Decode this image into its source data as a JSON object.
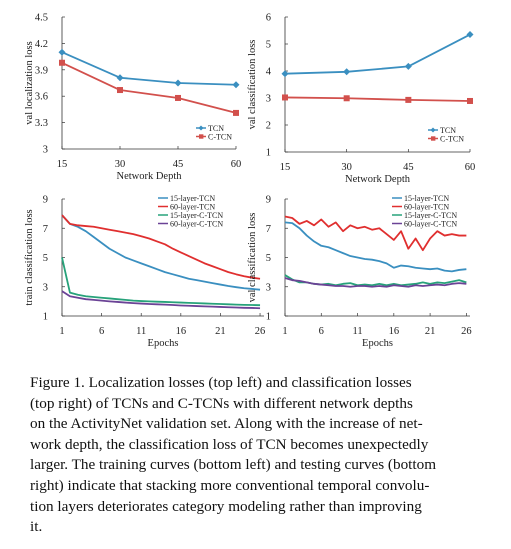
{
  "chart_data": [
    {
      "type": "line",
      "xlabel": "Network Depth",
      "ylabel": "val localization loss",
      "x": [
        15,
        30,
        45,
        60
      ],
      "xticks": [
        15,
        30,
        45,
        60
      ],
      "yticks": [
        "3",
        "3.3",
        "3.6",
        "3.9",
        "4.2",
        "4.5"
      ],
      "xlim": [
        15,
        60
      ],
      "ylim": [
        3,
        4.5
      ],
      "legend_position": "bottom-right",
      "series": [
        {
          "name": "TCN",
          "color": "#3a8fc0",
          "marker": "diamond",
          "values": [
            4.1,
            3.81,
            3.75,
            3.73
          ]
        },
        {
          "name": "C-TCN",
          "color": "#d2504c",
          "marker": "square",
          "values": [
            3.98,
            3.67,
            3.58,
            3.41
          ]
        }
      ]
    },
    {
      "type": "line",
      "xlabel": "Network Depth",
      "ylabel": "val classification loss",
      "x": [
        15,
        30,
        45,
        60
      ],
      "xticks": [
        15,
        30,
        45,
        60
      ],
      "yticks": [
        "1",
        "2",
        "3",
        "4",
        "5",
        "6"
      ],
      "xlim": [
        15,
        60
      ],
      "ylim": [
        1,
        6
      ],
      "legend_position": "bottom-right",
      "series": [
        {
          "name": "TCN",
          "color": "#3a8fc0",
          "marker": "diamond",
          "values": [
            3.9,
            3.97,
            4.17,
            5.35
          ]
        },
        {
          "name": "C-TCN",
          "color": "#d2504c",
          "marker": "square",
          "values": [
            3.02,
            2.99,
            2.93,
            2.89
          ]
        }
      ]
    },
    {
      "type": "line",
      "xlabel": "Epochs",
      "ylabel": "train classification loss",
      "x": [
        1,
        2,
        3,
        4,
        5,
        6,
        7,
        8,
        9,
        10,
        11,
        12,
        13,
        14,
        15,
        16,
        17,
        18,
        19,
        20,
        21,
        22,
        23,
        24,
        25,
        26
      ],
      "xticks": [
        1,
        6,
        11,
        16,
        21,
        26
      ],
      "yticks": [
        "1",
        "3",
        "5",
        "7",
        "9"
      ],
      "xlim": [
        1,
        26.5
      ],
      "ylim": [
        1,
        9
      ],
      "legend_position": "top-right",
      "series": [
        {
          "name": "15-layer-TCN",
          "color": "#3a8fc0",
          "values": [
            7.9,
            7.3,
            7.1,
            6.8,
            6.4,
            6.0,
            5.6,
            5.3,
            5.0,
            4.8,
            4.6,
            4.4,
            4.2,
            4.0,
            3.85,
            3.7,
            3.55,
            3.45,
            3.35,
            3.25,
            3.15,
            3.05,
            2.97,
            2.9,
            2.85,
            2.8
          ]
        },
        {
          "name": "60-layer-TCN",
          "color": "#e02f2f",
          "values": [
            7.9,
            7.3,
            7.2,
            7.15,
            7.1,
            7.0,
            6.9,
            6.8,
            6.7,
            6.6,
            6.45,
            6.3,
            6.1,
            5.9,
            5.6,
            5.35,
            5.1,
            4.85,
            4.6,
            4.4,
            4.2,
            4.0,
            3.85,
            3.72,
            3.62,
            3.55
          ]
        },
        {
          "name": "15-layer-C-TCN",
          "color": "#27a27a",
          "values": [
            5.0,
            2.6,
            2.45,
            2.35,
            2.3,
            2.25,
            2.2,
            2.15,
            2.1,
            2.05,
            2.02,
            2.0,
            1.98,
            1.96,
            1.94,
            1.92,
            1.9,
            1.88,
            1.86,
            1.84,
            1.82,
            1.8,
            1.78,
            1.76,
            1.75,
            1.74
          ]
        },
        {
          "name": "60-layer-C-TCN",
          "color": "#6b4396",
          "values": [
            2.7,
            2.35,
            2.25,
            2.15,
            2.1,
            2.05,
            2.0,
            1.96,
            1.92,
            1.88,
            1.85,
            1.82,
            1.8,
            1.78,
            1.75,
            1.72,
            1.7,
            1.68,
            1.66,
            1.64,
            1.62,
            1.6,
            1.58,
            1.56,
            1.55,
            1.53
          ]
        }
      ]
    },
    {
      "type": "line",
      "xlabel": "Epochs",
      "ylabel": "val classification loss",
      "x": [
        1,
        2,
        3,
        4,
        5,
        6,
        7,
        8,
        9,
        10,
        11,
        12,
        13,
        14,
        15,
        16,
        17,
        18,
        19,
        20,
        21,
        22,
        23,
        24,
        25,
        26
      ],
      "xticks": [
        1,
        6,
        11,
        16,
        21,
        26
      ],
      "yticks": [
        "1",
        "3",
        "5",
        "7",
        "9"
      ],
      "xlim": [
        1,
        26.5
      ],
      "ylim": [
        1,
        9
      ],
      "legend_position": "top-right",
      "series": [
        {
          "name": "15-layer-TCN",
          "color": "#3a8fc0",
          "values": [
            7.4,
            7.35,
            7.0,
            6.5,
            6.1,
            5.8,
            5.7,
            5.5,
            5.3,
            5.1,
            5.0,
            4.9,
            4.85,
            4.75,
            4.6,
            4.3,
            4.45,
            4.4,
            4.3,
            4.25,
            4.2,
            4.25,
            4.1,
            4.05,
            4.15,
            4.2
          ]
        },
        {
          "name": "60-layer-TCN",
          "color": "#e02f2f",
          "values": [
            7.8,
            7.7,
            7.3,
            7.5,
            7.2,
            7.6,
            7.1,
            7.4,
            6.8,
            7.2,
            7.0,
            7.1,
            6.9,
            7.0,
            6.6,
            6.2,
            6.8,
            5.6,
            6.3,
            5.5,
            6.3,
            6.8,
            6.5,
            6.6,
            6.5,
            6.5
          ]
        },
        {
          "name": "15-layer-C-TCN",
          "color": "#27a27a",
          "values": [
            3.8,
            3.5,
            3.3,
            3.3,
            3.2,
            3.15,
            3.2,
            3.1,
            3.2,
            3.25,
            3.1,
            3.15,
            3.1,
            3.2,
            3.1,
            3.2,
            3.1,
            3.15,
            3.2,
            3.3,
            3.2,
            3.3,
            3.25,
            3.35,
            3.45,
            3.3
          ]
        },
        {
          "name": "60-layer-C-TCN",
          "color": "#6b4396",
          "values": [
            3.6,
            3.45,
            3.4,
            3.3,
            3.2,
            3.15,
            3.1,
            3.05,
            3.05,
            3.0,
            3.05,
            3.05,
            3.0,
            3.05,
            3.0,
            3.1,
            3.05,
            3.0,
            3.1,
            3.05,
            3.1,
            3.15,
            3.1,
            3.2,
            3.25,
            3.2
          ]
        }
      ]
    }
  ],
  "caption": [
    "Figure 1. Localization losses (top left) and classification losses",
    "(top right) of TCNs and C-TCNs with different network depths",
    "on the ActivityNet validation set. Along with the increase of net-",
    "work depth, the classification loss of TCN becomes unexpectedly",
    "larger. The training curves (bottom left) and testing curves (bottom",
    "right) indicate that stacking more conventional temporal convolu-",
    "tion layers deteriorates category modeling rather than improving",
    "it."
  ]
}
